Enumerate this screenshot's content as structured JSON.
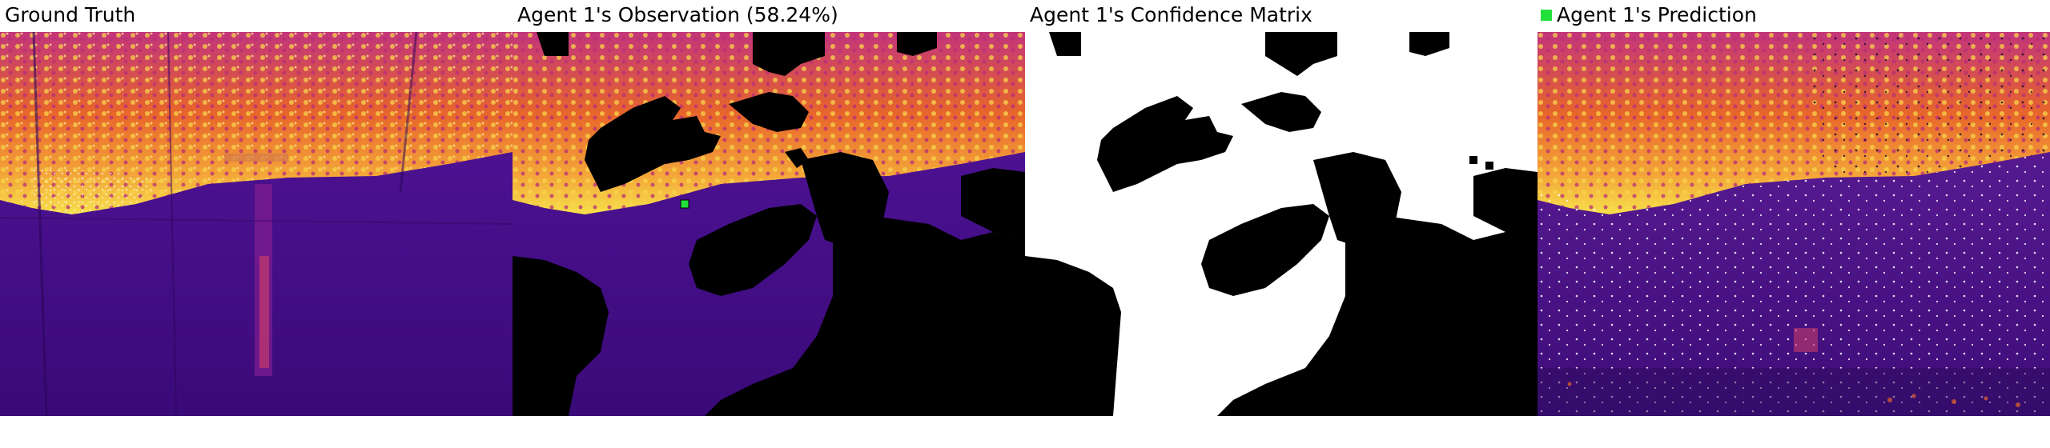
{
  "panels": [
    {
      "title": "Ground Truth"
    },
    {
      "title": "Agent 1's Observation (58.24%)"
    },
    {
      "title": "Agent 1's Confidence Matrix"
    },
    {
      "title": "Agent 1's Prediction",
      "legend_color": "#22e03a"
    }
  ],
  "colors": {
    "colormap": "inferno",
    "deep_purple": "#3a0a78",
    "mid_purple": "#5a1d94",
    "orange": "#e8662a",
    "yellow": "#f7e04a",
    "mask_black": "#000000",
    "mask_white": "#ffffff",
    "marker_green": "#22e03a"
  }
}
